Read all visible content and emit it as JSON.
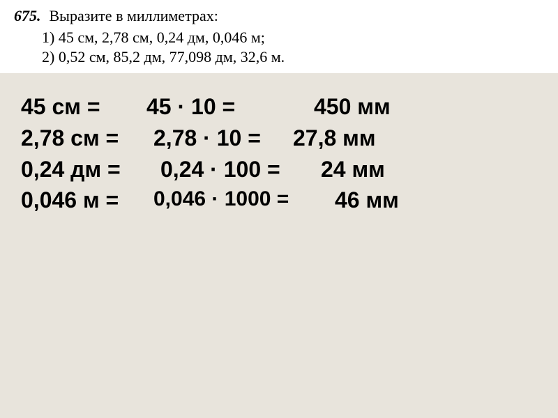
{
  "problem": {
    "number": "675.",
    "title": "Выразите в миллиметрах:",
    "lines": [
      "1) 45 см,    2,78 см,    0,24 дм,    0,046 м;",
      "2) 0,52 см,    85,2 дм,    77,098 дм,    32,6 м."
    ]
  },
  "solutions": [
    {
      "left": "45 см =",
      "mid": "45 · 10 =",
      "right": "450 мм"
    },
    {
      "left": "2,78 см =",
      "mid": "2,78 · 10 =",
      "right": "27,8 мм"
    },
    {
      "left": "0,24 дм =",
      "mid": "0,24 · 100 =",
      "right": "24 мм"
    },
    {
      "left": "0,046 м =",
      "mid": "0,046 · 1000 =",
      "right": "46 мм"
    }
  ],
  "style": {
    "background_color": "#e8e4dc",
    "problem_bg": "#ffffff",
    "text_color": "#000000",
    "problem_fontsize": 22,
    "solution_fontsize": 32,
    "solution_font": "Arial Black"
  }
}
